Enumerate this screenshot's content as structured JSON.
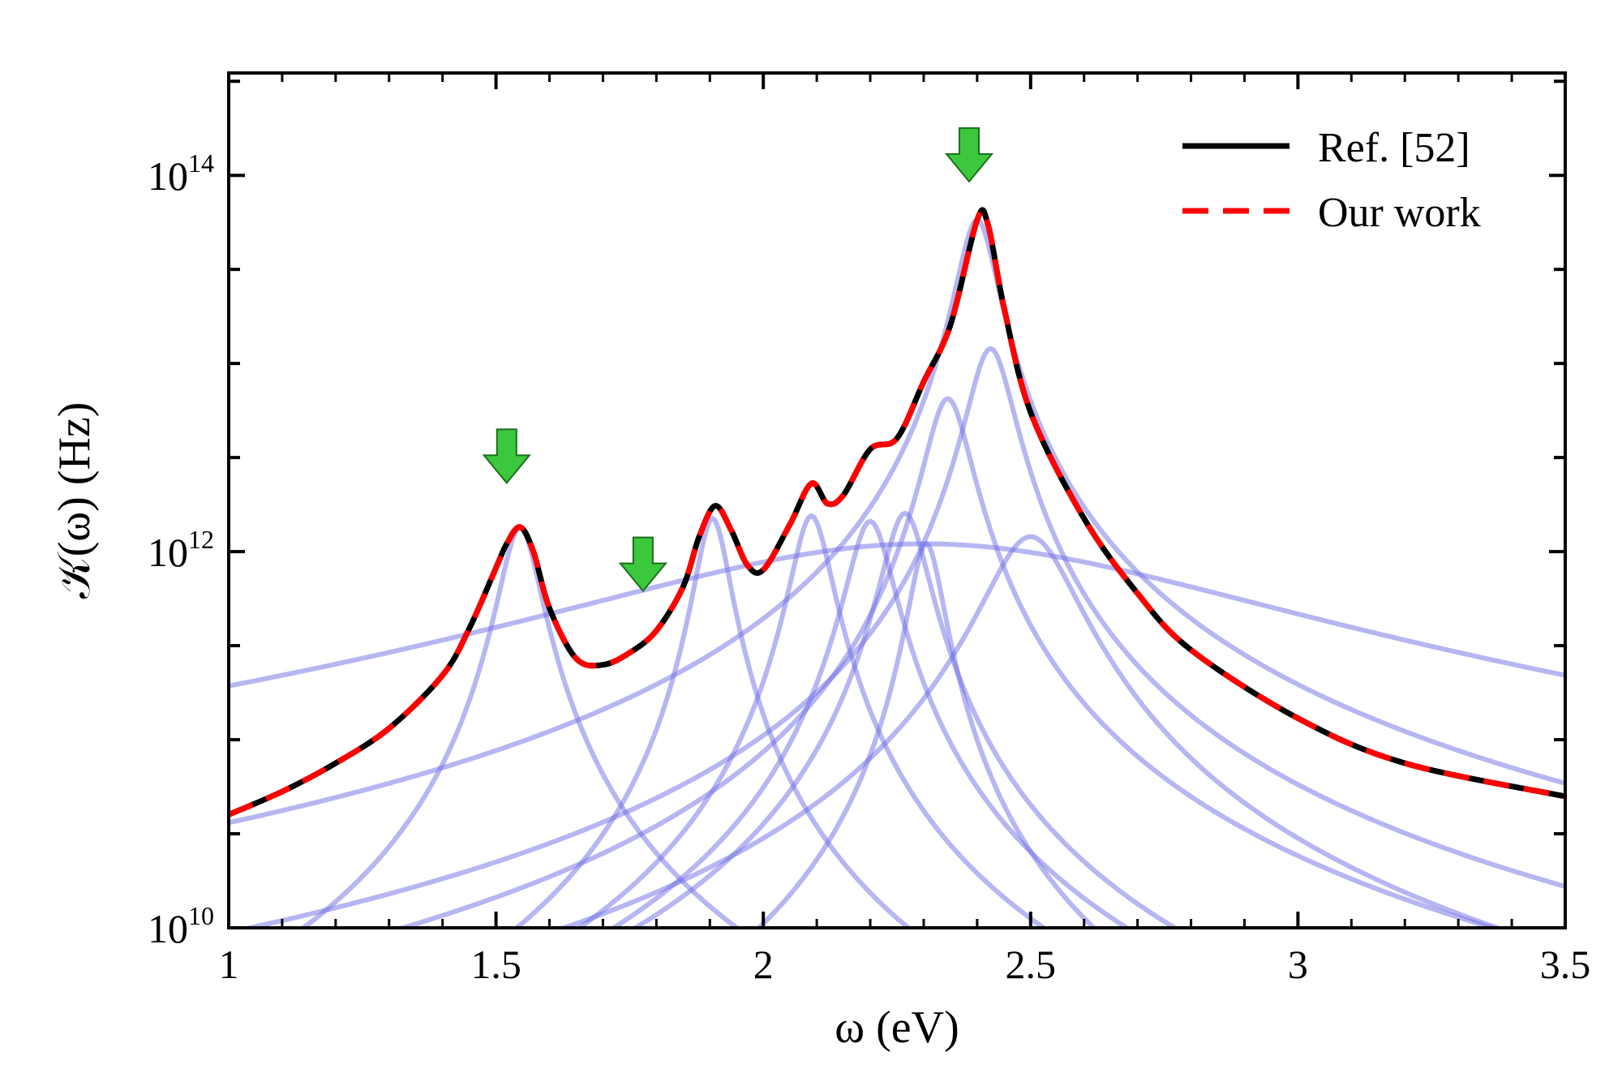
{
  "chart_data": {
    "type": "line",
    "title": "",
    "xlabel": "ω (eV)",
    "ylabel": "𝒦(ω) (Hz)",
    "xlim": [
      1,
      3.5
    ],
    "ylim": [
      10000000000.0,
      350000000000000.0
    ],
    "y_scale": "log",
    "grid": false,
    "legend_position": "top-right",
    "x_ticks": [
      {
        "value": 1,
        "label": "1"
      },
      {
        "value": 1.5,
        "label": "1.5"
      },
      {
        "value": 2,
        "label": "2"
      },
      {
        "value": 2.5,
        "label": "2.5"
      },
      {
        "value": 3,
        "label": "3"
      },
      {
        "value": 3.5,
        "label": "3.5"
      }
    ],
    "y_ticks": [
      {
        "value": 10000000000.0,
        "base": "10",
        "exponent": "10"
      },
      {
        "value": 1000000000000.0,
        "base": "10",
        "exponent": "12"
      },
      {
        "value": 100000000000000.0,
        "base": "10",
        "exponent": "14"
      }
    ],
    "series": [
      {
        "name": "Ref. [52]",
        "color": "#000000",
        "style": "solid",
        "x": [
          1.0,
          1.1,
          1.2,
          1.3,
          1.4,
          1.45,
          1.5,
          1.52,
          1.545,
          1.57,
          1.6,
          1.65,
          1.7,
          1.75,
          1.8,
          1.85,
          1.88,
          1.91,
          1.94,
          1.97,
          2.0,
          2.05,
          2.09,
          2.12,
          2.15,
          2.2,
          2.25,
          2.3,
          2.35,
          2.4,
          2.42,
          2.45,
          2.5,
          2.6,
          2.7,
          2.8,
          3.0,
          3.2,
          3.5
        ],
        "y": [
          40000000000.0,
          53000000000.0,
          75000000000.0,
          115000000000.0,
          220000000000.0,
          390000000000.0,
          820000000000.0,
          1100000000000.0,
          1350000000000.0,
          1000000000000.0,
          500000000000.0,
          270000000000.0,
          250000000000.0,
          290000000000.0,
          380000000000.0,
          650000000000.0,
          1200000000000.0,
          1750000000000.0,
          1300000000000.0,
          850000000000.0,
          800000000000.0,
          1400000000000.0,
          2300000000000.0,
          1800000000000.0,
          2000000000000.0,
          3500000000000.0,
          4000000000000.0,
          8000000000000.0,
          16000000000000.0,
          58000000000000.0,
          55000000000000.0,
          20000000000000.0,
          5500000000000.0,
          1500000000000.0,
          600000000000.0,
          300000000000.0,
          130000000000.0,
          75000000000.0,
          50000000000.0
        ]
      },
      {
        "name": "Our work",
        "color": "#ff0000",
        "style": "dashed",
        "x": [
          1.0,
          1.1,
          1.2,
          1.3,
          1.4,
          1.45,
          1.5,
          1.52,
          1.545,
          1.57,
          1.6,
          1.65,
          1.7,
          1.75,
          1.8,
          1.85,
          1.88,
          1.91,
          1.94,
          1.97,
          2.0,
          2.05,
          2.09,
          2.12,
          2.15,
          2.2,
          2.25,
          2.3,
          2.35,
          2.4,
          2.42,
          2.45,
          2.5,
          2.6,
          2.7,
          2.8,
          3.0,
          3.2,
          3.5
        ],
        "y": [
          40000000000.0,
          53000000000.0,
          75000000000.0,
          115000000000.0,
          220000000000.0,
          390000000000.0,
          820000000000.0,
          1100000000000.0,
          1350000000000.0,
          1000000000000.0,
          500000000000.0,
          270000000000.0,
          250000000000.0,
          290000000000.0,
          380000000000.0,
          650000000000.0,
          1200000000000.0,
          1750000000000.0,
          1300000000000.0,
          850000000000.0,
          800000000000.0,
          1400000000000.0,
          2300000000000.0,
          1800000000000.0,
          2000000000000.0,
          3500000000000.0,
          4000000000000.0,
          8000000000000.0,
          16000000000000.0,
          58000000000000.0,
          55000000000000.0,
          20000000000000.0,
          5500000000000.0,
          1500000000000.0,
          600000000000.0,
          300000000000.0,
          130000000000.0,
          75000000000.0,
          50000000000.0
        ]
      }
    ],
    "components": {
      "color": "#6e6ee6",
      "opacity": 0.5,
      "peaks": [
        {
          "center": 1.545,
          "peak": 1350000000000.0,
          "width": 0.035
        },
        {
          "center": 1.905,
          "peak": 1500000000000.0,
          "width": 0.03
        },
        {
          "center": 2.09,
          "peak": 1550000000000.0,
          "width": 0.035
        },
        {
          "center": 2.2,
          "peak": 1450000000000.0,
          "width": 0.04
        },
        {
          "center": 2.265,
          "peak": 1600000000000.0,
          "width": 0.04
        },
        {
          "center": 2.305,
          "peak": 1100000000000.0,
          "width": 0.03
        },
        {
          "center": 2.345,
          "peak": 6500000000000.0,
          "width": 0.04
        },
        {
          "center": 2.4,
          "peak": 58000000000000.0,
          "width": 0.035
        },
        {
          "center": 2.425,
          "peak": 12000000000000.0,
          "width": 0.04
        },
        {
          "center": 2.5,
          "peak": 1200000000000.0,
          "width": 0.08
        },
        {
          "center": 2.3,
          "peak": 1100000000000.0,
          "width": 0.6
        }
      ]
    },
    "markers": [
      {
        "type": "down-arrow",
        "color": "#3cc83c",
        "x": 1.52,
        "y": 3000000000000.0
      },
      {
        "type": "down-arrow",
        "color": "#3cc83c",
        "x": 1.775,
        "y": 800000000000.0
      },
      {
        "type": "down-arrow",
        "color": "#3cc83c",
        "x": 2.385,
        "y": 120000000000000.0
      }
    ]
  }
}
